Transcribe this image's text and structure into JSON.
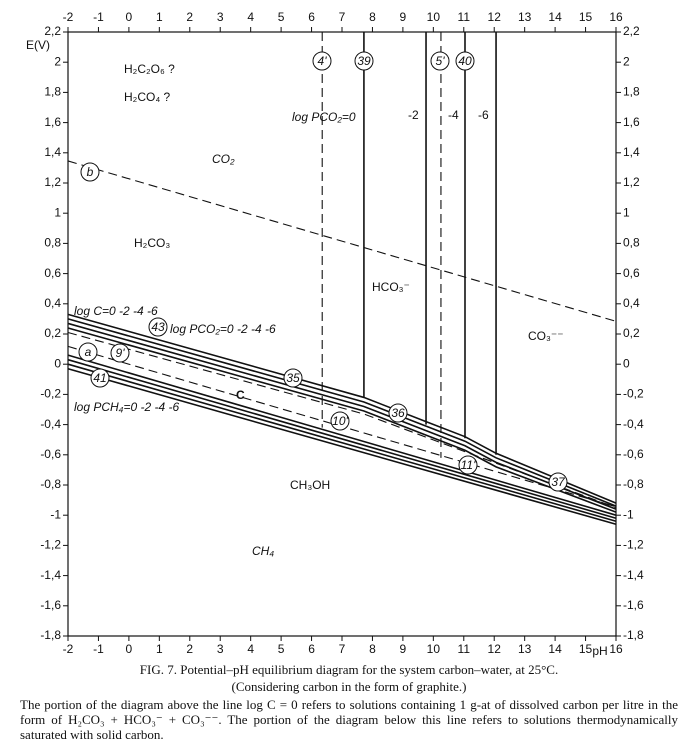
{
  "chart_data": {
    "type": "line",
    "title": "FIG. 7. Potential–pH equilibrium diagram for the system carbon–water, at 25°C.",
    "subtitle": "(Considering carbon in the form of graphite.)",
    "note": "The portion of the diagram above the line log C = 0 refers to solutions containing 1 g-at of dissolved carbon per litre in the form of H₂CO₃ + HCO₃⁻ + CO₃⁻⁻. The portion of the diagram below this line refers to solutions thermodynamically saturated with solid carbon.",
    "xlabel": "pH",
    "ylabel": "E(V)",
    "xlim": [
      -2,
      16
    ],
    "ylim": [
      -1.8,
      2.2
    ],
    "xticks": [
      -2,
      -1,
      0,
      1,
      2,
      3,
      4,
      5,
      6,
      7,
      8,
      9,
      10,
      11,
      12,
      13,
      14,
      15,
      16
    ],
    "yticks": [
      {
        "value": 2.2,
        "label": "2,2"
      },
      2,
      {
        "value": 1.8,
        "label": "1,8"
      },
      {
        "value": 1.6,
        "label": "1,6"
      },
      {
        "value": 1.4,
        "label": "1,4"
      },
      {
        "value": 1.2,
        "label": "1,2"
      },
      1,
      {
        "value": 0.8,
        "label": "0,8"
      },
      {
        "value": 0.6,
        "label": "0,6"
      },
      {
        "value": 0.4,
        "label": "0,4"
      },
      {
        "value": 0.2,
        "label": "0,2"
      },
      0,
      {
        "value": -0.2,
        "label": "-0,2"
      },
      {
        "value": -0.4,
        "label": "-0,4"
      },
      {
        "value": -0.6,
        "label": "-0,6"
      },
      {
        "value": -0.8,
        "label": "-0,8"
      },
      -1,
      {
        "value": -1.2,
        "label": "-1,2"
      },
      {
        "value": -1.4,
        "label": "-1,4"
      },
      {
        "value": -1.6,
        "label": "-1,6"
      },
      {
        "value": -1.8,
        "label": "-1,8"
      }
    ],
    "grid": false,
    "color": "#111111",
    "series": [
      {
        "x": [
          -2,
          16
        ],
        "values": [
          1.346,
          0.284
        ],
        "dashed": true
      },
      {
        "x": [
          -2,
          16
        ],
        "values": [
          0.118,
          -0.944
        ],
        "dashed": true
      },
      {
        "x": [
          6.35,
          6.35
        ],
        "values": [
          2.2,
          -0.42
        ],
        "dashed": true
      },
      {
        "x": [
          10.25,
          10.25
        ],
        "values": [
          2.2,
          -0.62
        ],
        "dashed": true
      },
      {
        "x": [
          7.72,
          7.72
        ],
        "values": [
          2.2,
          -0.22
        ],
        "dashed": false
      },
      {
        "x": [
          9.76,
          9.76
        ],
        "values": [
          2.2,
          -0.4
        ],
        "dashed": false
      },
      {
        "x": [
          11.04,
          11.04
        ],
        "values": [
          2.2,
          -0.49
        ],
        "dashed": false
      },
      {
        "x": [
          12.06,
          12.06
        ],
        "values": [
          2.2,
          -0.6
        ],
        "dashed": false
      },
      {
        "x": [
          -2,
          7.72,
          9.76,
          11.04,
          12.06,
          16
        ],
        "values": [
          0.33,
          -0.22,
          -0.38,
          -0.48,
          -0.59,
          -0.92
        ],
        "dashed": false
      },
      {
        "x": [
          -2,
          7.72,
          9.76,
          11.04,
          12.06,
          16
        ],
        "values": [
          0.3,
          -0.25,
          -0.41,
          -0.51,
          -0.62,
          -0.94
        ],
        "dashed": false
      },
      {
        "x": [
          -2,
          7.72,
          9.76,
          11.04,
          12.06,
          16
        ],
        "values": [
          0.27,
          -0.28,
          -0.44,
          -0.54,
          -0.65,
          -0.96
        ],
        "dashed": false
      },
      {
        "x": [
          -2,
          7.72,
          9.76,
          11.04,
          12.06,
          16
        ],
        "values": [
          0.24,
          -0.31,
          -0.47,
          -0.57,
          -0.68,
          -0.98
        ],
        "dashed": false
      },
      {
        "x": [
          -2,
          16
        ],
        "values": [
          0.06,
          -1.0
        ],
        "dashed": false
      },
      {
        "x": [
          -2,
          16
        ],
        "values": [
          0.03,
          -1.02
        ],
        "dashed": false
      },
      {
        "x": [
          -2,
          16
        ],
        "values": [
          0.0,
          -1.04
        ],
        "dashed": false
      },
      {
        "x": [
          -2,
          16
        ],
        "values": [
          -0.03,
          -1.06
        ],
        "dashed": false
      },
      {
        "x": [
          -2,
          7.72,
          10.25,
          16
        ],
        "values": [
          0.21,
          -0.33,
          -0.52,
          -0.95
        ],
        "dashed": true
      }
    ],
    "region_labels": [
      "H₂C₂O₆ ?",
      "H₂CO₄ ?",
      "log PCO₂=0",
      "-2",
      "-4",
      "-6",
      "CO₂",
      "H₂CO₃",
      "HCO₃⁻",
      "CO₃⁻⁻",
      "log C=0 -2 -4 -6",
      "log PCO₂=0 -2 -4 -6",
      "C",
      "log PCH₄=0 -2 -4 -6",
      "CH₃OH",
      "CH₄"
    ],
    "circle_labels": [
      "b",
      "a",
      "9'",
      "43",
      "41",
      "35",
      "36",
      "10'",
      "11'",
      "37",
      "4'",
      "39",
      "5'",
      "40"
    ]
  }
}
